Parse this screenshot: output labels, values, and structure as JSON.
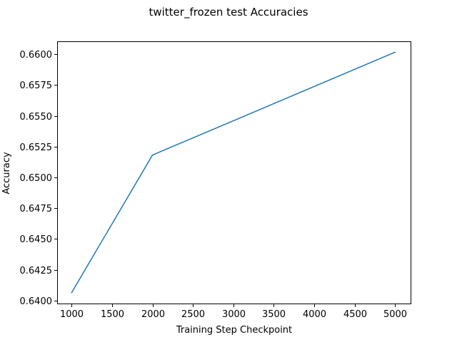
{
  "chart_data": {
    "type": "line",
    "title": "twitter_frozen test Accuracies",
    "xlabel": "Training Step Checkpoint",
    "ylabel": "Accuracy",
    "xlim": [
      820,
      5200
    ],
    "ylim": [
      0.6397,
      0.66105
    ],
    "xticks": [
      1000,
      1500,
      2000,
      2500,
      3000,
      3500,
      4000,
      4500,
      5000
    ],
    "yticks": [
      0.64,
      0.6425,
      0.645,
      0.6475,
      0.65,
      0.6525,
      0.655,
      0.6575,
      0.66
    ],
    "xtick_labels": [
      "1000",
      "1500",
      "2000",
      "2500",
      "3000",
      "3500",
      "4000",
      "4500",
      "5000"
    ],
    "ytick_labels": [
      "0.6400",
      "0.6425",
      "0.6450",
      "0.6475",
      "0.6500",
      "0.6525",
      "0.6550",
      "0.6575",
      "0.6600"
    ],
    "grid": false,
    "series": [
      {
        "color": "#1f77b4",
        "x": [
          1000,
          2000,
          5000
        ],
        "y": [
          0.64065,
          0.65182,
          0.66017
        ]
      }
    ]
  }
}
